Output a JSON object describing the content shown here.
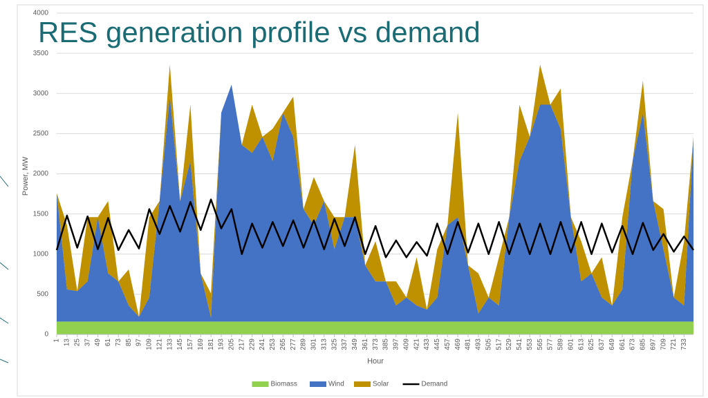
{
  "chart_data": {
    "type": "area",
    "title": "RES generation profile vs demand",
    "x_label": "Hour",
    "y_label": "Power, MW",
    "x": [
      1,
      13,
      25,
      37,
      49,
      61,
      73,
      85,
      97,
      109,
      121,
      133,
      145,
      157,
      169,
      181,
      193,
      205,
      217,
      229,
      241,
      253,
      265,
      277,
      289,
      301,
      313,
      325,
      337,
      349,
      361,
      373,
      385,
      397,
      409,
      421,
      433,
      445,
      457,
      469,
      481,
      493,
      505,
      517,
      529,
      541,
      553,
      565,
      577,
      589,
      601,
      613,
      625,
      637,
      649,
      661,
      673,
      685,
      697,
      709,
      721,
      733,
      744
    ],
    "xlim": [
      1,
      744
    ],
    "xticks": [
      1,
      13,
      25,
      37,
      49,
      61,
      73,
      85,
      97,
      109,
      121,
      133,
      145,
      157,
      169,
      181,
      193,
      205,
      217,
      229,
      241,
      253,
      265,
      277,
      289,
      301,
      313,
      325,
      337,
      349,
      361,
      373,
      385,
      397,
      409,
      421,
      433,
      445,
      457,
      469,
      481,
      493,
      505,
      517,
      529,
      541,
      553,
      565,
      577,
      589,
      601,
      613,
      625,
      637,
      649,
      661,
      673,
      685,
      697,
      709,
      721,
      733
    ],
    "ylim": [
      0,
      4000
    ],
    "yticks": [
      0,
      500,
      1000,
      1500,
      2000,
      2500,
      3000,
      3500,
      4000
    ],
    "grid": true,
    "legend": "bottom",
    "series": [
      {
        "name": "Biomass",
        "type": "area",
        "color": "#92d050",
        "values": [
          160,
          160,
          160,
          160,
          160,
          160,
          160,
          160,
          160,
          160,
          160,
          160,
          160,
          160,
          160,
          160,
          160,
          160,
          160,
          160,
          160,
          160,
          160,
          160,
          160,
          160,
          160,
          160,
          160,
          160,
          160,
          160,
          160,
          160,
          160,
          160,
          160,
          160,
          160,
          160,
          160,
          160,
          160,
          160,
          160,
          160,
          160,
          160,
          160,
          160,
          160,
          160,
          160,
          160,
          160,
          160,
          160,
          160,
          160,
          160,
          160,
          160,
          160
        ]
      },
      {
        "name": "Wind",
        "type": "area",
        "color": "#4472c4",
        "values": [
          1600,
          400,
          380,
          500,
          1300,
          600,
          500,
          200,
          60,
          300,
          1500,
          2800,
          1500,
          2000,
          600,
          50,
          2600,
          2950,
          2200,
          2100,
          2300,
          2000,
          2600,
          2300,
          1400,
          1200,
          1500,
          900,
          1300,
          1300,
          700,
          500,
          500,
          200,
          300,
          200,
          150,
          300,
          1200,
          1300,
          700,
          100,
          300,
          200,
          1300,
          2000,
          2300,
          2700,
          2700,
          2400,
          1300,
          500,
          600,
          300,
          200,
          400,
          2000,
          2600,
          1500,
          900,
          300,
          200,
          2300
        ]
      },
      {
        "name": "Solar",
        "type": "area",
        "color": "#bf9000",
        "values": [
          0,
          800,
          0,
          800,
          0,
          900,
          0,
          450,
          0,
          1000,
          0,
          400,
          0,
          700,
          0,
          300,
          0,
          0,
          0,
          600,
          0,
          400,
          0,
          500,
          0,
          600,
          0,
          400,
          0,
          900,
          0,
          500,
          0,
          300,
          0,
          600,
          0,
          600,
          0,
          1300,
          0,
          500,
          0,
          600,
          0,
          700,
          0,
          500,
          0,
          500,
          0,
          500,
          0,
          500,
          0,
          900,
          0,
          400,
          0,
          500,
          0,
          800,
          0
        ]
      },
      {
        "name": "Demand",
        "type": "line",
        "color": "#000000",
        "values": [
          1050,
          1480,
          1080,
          1470,
          1060,
          1450,
          1050,
          1300,
          1070,
          1560,
          1250,
          1600,
          1280,
          1650,
          1300,
          1680,
          1320,
          1560,
          1000,
          1380,
          1080,
          1400,
          1100,
          1420,
          1080,
          1420,
          1060,
          1440,
          1100,
          1460,
          1000,
          1350,
          960,
          1170,
          960,
          1150,
          980,
          1380,
          1000,
          1400,
          1020,
          1380,
          1000,
          1400,
          1000,
          1380,
          1000,
          1380,
          1000,
          1400,
          1020,
          1400,
          1000,
          1380,
          1020,
          1350,
          1000,
          1390,
          1050,
          1250,
          1030,
          1220,
          1050
        ]
      }
    ]
  }
}
